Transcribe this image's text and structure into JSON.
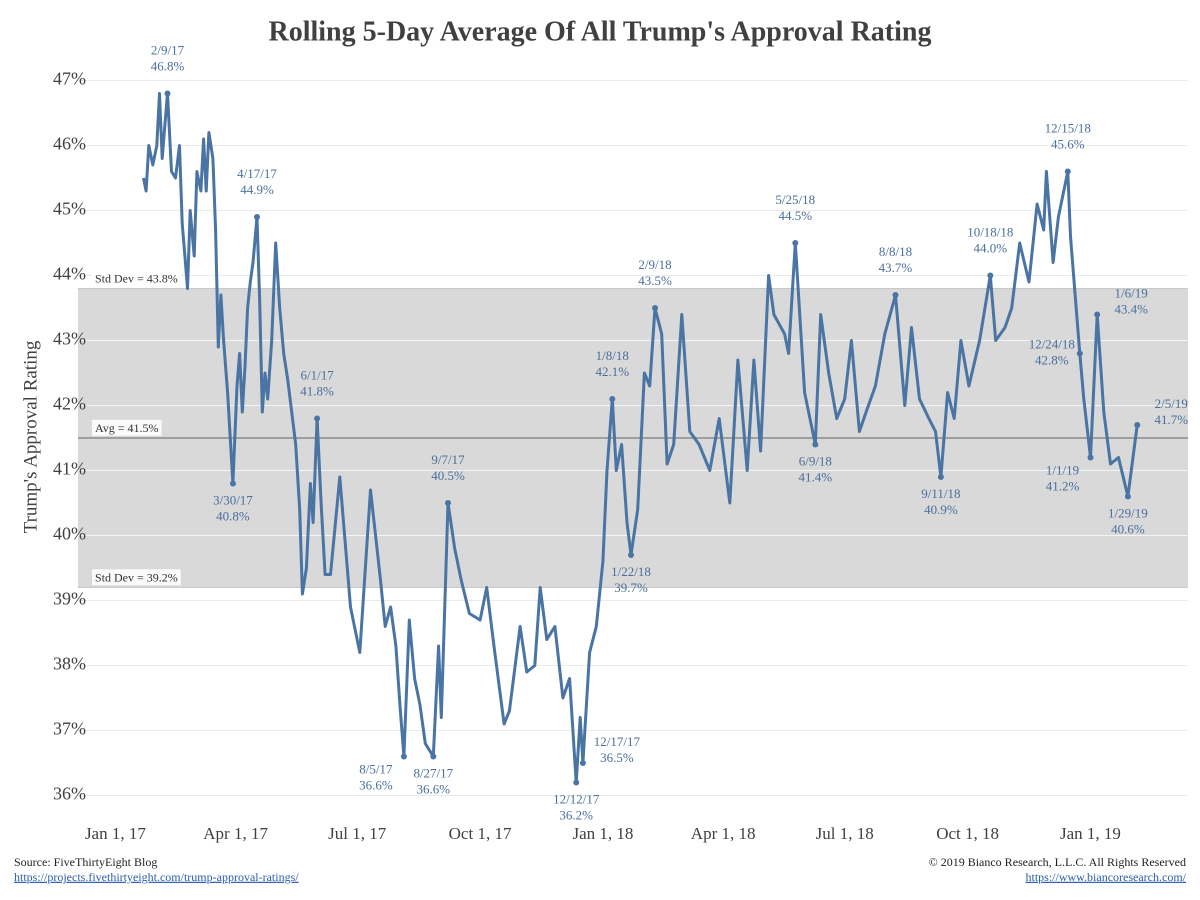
{
  "chart_data": {
    "type": "line",
    "title": "Rolling 5-Day Average Of All Trump's Approval Rating",
    "y_label": "Trump's Approval Rating",
    "color": "#4a74a4",
    "grid": true,
    "shade": "#d9d9d9",
    "xlim": [
      "2016-12-04",
      "2019-03-15"
    ],
    "xticks": [
      {
        "value": "2017-01-01",
        "label": "Jan 1, 17"
      },
      {
        "value": "2017-04-01",
        "label": "Apr 1, 17"
      },
      {
        "value": "2017-07-01",
        "label": "Jul 1, 17"
      },
      {
        "value": "2017-10-01",
        "label": "Oct 1, 17"
      },
      {
        "value": "2018-01-01",
        "label": "Jan 1, 18"
      },
      {
        "value": "2018-04-01",
        "label": "Apr 1, 18"
      },
      {
        "value": "2018-07-01",
        "label": "Jul 1, 18"
      },
      {
        "value": "2018-10-01",
        "label": "Oct 1, 18"
      },
      {
        "value": "2019-01-01",
        "label": "Jan 1, 19"
      }
    ],
    "ylim": [
      35.7,
      47.3
    ],
    "yticks": [
      {
        "value": 36,
        "label": "36%"
      },
      {
        "value": 37,
        "label": "37%"
      },
      {
        "value": 38,
        "label": "38%"
      },
      {
        "value": 39,
        "label": "39%"
      },
      {
        "value": 40,
        "label": "40%"
      },
      {
        "value": 41,
        "label": "41%"
      },
      {
        "value": 42,
        "label": "42%"
      },
      {
        "value": 43,
        "label": "43%"
      },
      {
        "value": 44,
        "label": "44%"
      },
      {
        "value": 45,
        "label": "45%"
      },
      {
        "value": 46,
        "label": "46%"
      },
      {
        "value": 47,
        "label": "47%"
      }
    ],
    "reference_lines": [
      {
        "value": 43.8,
        "label": "Std Dev = 43.8%"
      },
      {
        "value": 41.5,
        "label": "Avg = 41.5%"
      },
      {
        "value": 39.2,
        "label": "Std Dev = 39.2%"
      }
    ],
    "x": [
      "2017-01-22",
      "2017-01-24",
      "2017-01-26",
      "2017-01-29",
      "2017-02-01",
      "2017-02-03",
      "2017-02-05",
      "2017-02-07",
      "2017-02-09",
      "2017-02-12",
      "2017-02-15",
      "2017-02-18",
      "2017-02-20",
      "2017-02-22",
      "2017-02-24",
      "2017-02-26",
      "2017-03-01",
      "2017-03-03",
      "2017-03-06",
      "2017-03-08",
      "2017-03-10",
      "2017-03-12",
      "2017-03-15",
      "2017-03-17",
      "2017-03-19",
      "2017-03-21",
      "2017-03-23",
      "2017-03-26",
      "2017-03-30",
      "2017-04-02",
      "2017-04-04",
      "2017-04-06",
      "2017-04-08",
      "2017-04-10",
      "2017-04-12",
      "2017-04-14",
      "2017-04-17",
      "2017-04-19",
      "2017-04-21",
      "2017-04-23",
      "2017-04-25",
      "2017-04-28",
      "2017-05-01",
      "2017-05-04",
      "2017-05-07",
      "2017-05-10",
      "2017-05-13",
      "2017-05-16",
      "2017-05-19",
      "2017-05-21",
      "2017-05-24",
      "2017-05-27",
      "2017-05-29",
      "2017-06-01",
      "2017-06-04",
      "2017-06-07",
      "2017-06-11",
      "2017-06-18",
      "2017-06-26",
      "2017-07-03",
      "2017-07-11",
      "2017-07-18",
      "2017-07-22",
      "2017-07-26",
      "2017-07-30",
      "2017-08-02",
      "2017-08-05",
      "2017-08-09",
      "2017-08-13",
      "2017-08-17",
      "2017-08-21",
      "2017-08-27",
      "2017-08-31",
      "2017-09-02",
      "2017-09-07",
      "2017-09-12",
      "2017-09-17",
      "2017-09-23",
      "2017-10-01",
      "2017-10-06",
      "2017-10-12",
      "2017-10-19",
      "2017-10-23",
      "2017-10-31",
      "2017-11-05",
      "2017-11-11",
      "2017-11-15",
      "2017-11-20",
      "2017-11-26",
      "2017-12-02",
      "2017-12-07",
      "2017-12-12",
      "2017-12-15",
      "2017-12-17",
      "2017-12-22",
      "2017-12-27",
      "2018-01-01",
      "2018-01-04",
      "2018-01-08",
      "2018-01-11",
      "2018-01-15",
      "2018-01-19",
      "2018-01-22",
      "2018-01-27",
      "2018-02-01",
      "2018-02-05",
      "2018-02-09",
      "2018-02-14",
      "2018-02-18",
      "2018-02-23",
      "2018-03-01",
      "2018-03-07",
      "2018-03-14",
      "2018-03-22",
      "2018-03-29",
      "2018-04-06",
      "2018-04-12",
      "2018-04-19",
      "2018-04-24",
      "2018-04-29",
      "2018-05-05",
      "2018-05-09",
      "2018-05-17",
      "2018-05-20",
      "2018-05-25",
      "2018-06-01",
      "2018-06-09",
      "2018-06-13",
      "2018-06-19",
      "2018-06-25",
      "2018-07-01",
      "2018-07-06",
      "2018-07-12",
      "2018-07-17",
      "2018-07-24",
      "2018-07-31",
      "2018-08-08",
      "2018-08-15",
      "2018-08-20",
      "2018-08-26",
      "2018-09-02",
      "2018-09-07",
      "2018-09-11",
      "2018-09-16",
      "2018-09-21",
      "2018-09-26",
      "2018-10-02",
      "2018-10-10",
      "2018-10-18",
      "2018-10-22",
      "2018-10-29",
      "2018-11-03",
      "2018-11-09",
      "2018-11-16",
      "2018-11-22",
      "2018-11-27",
      "2018-11-29",
      "2018-12-04",
      "2018-12-08",
      "2018-12-15",
      "2018-12-17",
      "2018-12-24",
      "2018-12-27",
      "2019-01-01",
      "2019-01-06",
      "2019-01-11",
      "2019-01-16",
      "2019-01-22",
      "2019-01-29",
      "2019-02-05"
    ],
    "values": [
      45.5,
      45.3,
      46.0,
      45.7,
      46.0,
      46.8,
      45.8,
      46.3,
      46.8,
      45.6,
      45.5,
      46.0,
      44.8,
      44.3,
      43.8,
      45.0,
      44.3,
      45.6,
      45.3,
      46.1,
      45.3,
      46.2,
      45.8,
      44.7,
      42.9,
      43.7,
      43.0,
      42.2,
      40.8,
      42.3,
      42.8,
      41.9,
      42.6,
      43.5,
      43.9,
      44.2,
      44.9,
      43.6,
      41.9,
      42.5,
      42.1,
      43.0,
      44.5,
      43.5,
      42.8,
      42.4,
      41.9,
      41.4,
      40.4,
      39.1,
      39.5,
      40.8,
      40.2,
      41.8,
      40.5,
      39.4,
      39.4,
      40.9,
      38.9,
      38.2,
      40.7,
      39.4,
      38.6,
      38.9,
      38.3,
      37.4,
      36.6,
      38.7,
      37.8,
      37.4,
      36.8,
      36.6,
      38.3,
      37.2,
      40.5,
      39.8,
      39.3,
      38.8,
      38.7,
      39.2,
      38.2,
      37.1,
      37.3,
      38.6,
      37.9,
      38.0,
      39.2,
      38.4,
      38.6,
      37.5,
      37.8,
      36.2,
      37.2,
      36.5,
      38.2,
      38.6,
      39.6,
      41.0,
      42.1,
      41.0,
      41.4,
      40.2,
      39.7,
      40.4,
      42.5,
      42.3,
      43.5,
      43.1,
      41.1,
      41.4,
      43.4,
      41.6,
      41.4,
      41.0,
      41.8,
      40.5,
      42.7,
      41.0,
      42.7,
      41.3,
      44.0,
      43.4,
      43.1,
      42.8,
      44.5,
      42.2,
      41.4,
      43.4,
      42.5,
      41.8,
      42.1,
      43.0,
      41.6,
      41.9,
      42.3,
      43.1,
      43.7,
      42.0,
      43.2,
      42.1,
      41.8,
      41.6,
      40.9,
      42.2,
      41.8,
      43.0,
      42.3,
      43.0,
      44.0,
      43.0,
      43.2,
      43.5,
      44.5,
      43.9,
      45.1,
      44.7,
      45.6,
      44.2,
      44.9,
      45.6,
      44.6,
      42.8,
      42.1,
      41.2,
      43.4,
      41.9,
      41.1,
      41.2,
      40.6,
      41.7
    ],
    "annotations": [
      {
        "x": "2017-02-09",
        "value": 46.8,
        "date_label": "2/9/17",
        "value_label": "46.8%",
        "position": "above"
      },
      {
        "x": "2017-03-30",
        "value": 40.8,
        "date_label": "3/30/17",
        "value_label": "40.8%",
        "position": "below"
      },
      {
        "x": "2017-04-17",
        "value": 44.9,
        "date_label": "4/17/17",
        "value_label": "44.9%",
        "position": "above"
      },
      {
        "x": "2017-06-01",
        "value": 41.8,
        "date_label": "6/1/17",
        "value_label": "41.8%",
        "position": "above"
      },
      {
        "x": "2017-08-05",
        "value": 36.6,
        "date_label": "8/5/17",
        "value_label": "36.6%",
        "position": "below-left"
      },
      {
        "x": "2017-08-27",
        "value": 36.6,
        "date_label": "8/27/17",
        "value_label": "36.6%",
        "position": "below"
      },
      {
        "x": "2017-09-07",
        "value": 40.5,
        "date_label": "9/7/17",
        "value_label": "40.5%",
        "position": "above"
      },
      {
        "x": "2017-12-12",
        "value": 36.2,
        "date_label": "12/12/17",
        "value_label": "36.2%",
        "position": "below"
      },
      {
        "x": "2017-12-17",
        "value": 36.5,
        "date_label": "12/17/17",
        "value_label": "36.5%",
        "position": "above-right"
      },
      {
        "x": "2018-01-08",
        "value": 42.1,
        "date_label": "1/8/18",
        "value_label": "42.1%",
        "position": "above"
      },
      {
        "x": "2018-01-22",
        "value": 39.7,
        "date_label": "1/22/18",
        "value_label": "39.7%",
        "position": "below"
      },
      {
        "x": "2018-02-09",
        "value": 43.5,
        "date_label": "2/9/18",
        "value_label": "43.5%",
        "position": "above"
      },
      {
        "x": "2018-05-25",
        "value": 44.5,
        "date_label": "5/25/18",
        "value_label": "44.5%",
        "position": "above"
      },
      {
        "x": "2018-06-09",
        "value": 41.4,
        "date_label": "6/9/18",
        "value_label": "41.4%",
        "position": "below"
      },
      {
        "x": "2018-08-08",
        "value": 43.7,
        "date_label": "8/8/18",
        "value_label": "43.7%",
        "position": "above"
      },
      {
        "x": "2018-09-11",
        "value": 40.9,
        "date_label": "9/11/18",
        "value_label": "40.9%",
        "position": "below"
      },
      {
        "x": "2018-10-18",
        "value": 44.0,
        "date_label": "10/18/18",
        "value_label": "44.0%",
        "position": "above"
      },
      {
        "x": "2018-12-15",
        "value": 45.6,
        "date_label": "12/15/18",
        "value_label": "45.6%",
        "position": "above"
      },
      {
        "x": "2018-12-24",
        "value": 42.8,
        "date_label": "12/24/18",
        "value_label": "42.8%",
        "position": "left"
      },
      {
        "x": "2019-01-01",
        "value": 41.2,
        "date_label": "1/1/19",
        "value_label": "41.2%",
        "position": "below-left"
      },
      {
        "x": "2019-01-06",
        "value": 43.4,
        "date_label": "1/6/19",
        "value_label": "43.4%",
        "position": "above-right"
      },
      {
        "x": "2019-01-29",
        "value": 40.6,
        "date_label": "1/29/19",
        "value_label": "40.6%",
        "position": "below"
      },
      {
        "x": "2019-02-05",
        "value": 41.7,
        "date_label": "2/5/19",
        "value_label": "41.7%",
        "position": "above-right"
      }
    ],
    "source": "Source: FiveThirtyEight Blog",
    "source_url": "https://projects.fivethirtyeight.com/trump-approval-ratings/",
    "copyright": "© 2019 Bianco Research, L.L.C. All Rights Reserved",
    "copyright_url": "https://www.biancoresearch.com/"
  }
}
